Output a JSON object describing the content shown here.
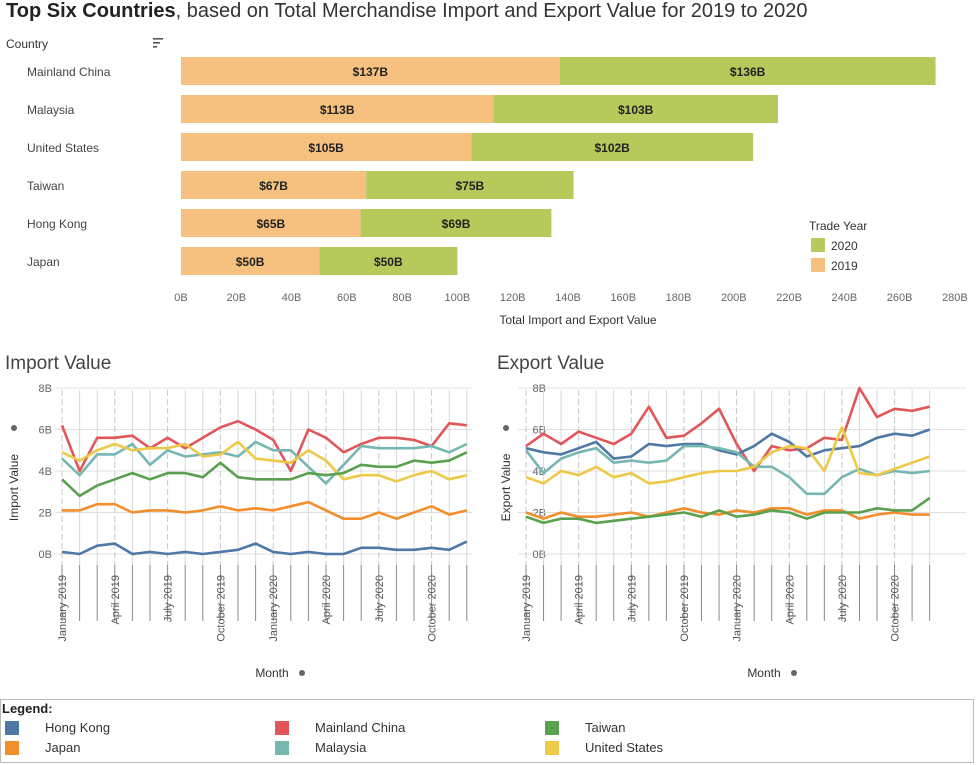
{
  "title": {
    "bold": "Top Six Countries",
    "rest": ", based on Total Merchandise Import and Export Value for 2019 to 2020"
  },
  "bar_chart": {
    "row_header": "Country",
    "xlabel": "Total Import and Export Value",
    "legend_title": "Trade Year"
  },
  "colors": {
    "y2019": "#f6c17f",
    "y2020": "#b6c95b",
    "Hong Kong": "#4e79a7",
    "Japan": "#f28e2b",
    "Mainland China": "#e15759",
    "Malaysia": "#76b7b2",
    "Taiwan": "#59a14f",
    "United States": "#edc948"
  },
  "import_panel": {
    "title": "Import Value",
    "ylabel": "Import Value",
    "xlabel": "Month"
  },
  "export_panel": {
    "title": "Export Value",
    "ylabel": "Export Value",
    "xlabel": "Month"
  },
  "legend": {
    "title": "Legend:",
    "items": [
      "Hong Kong",
      "Japan",
      "Mainland China",
      "Malaysia",
      "Taiwan",
      "United States"
    ]
  },
  "chart_data": [
    {
      "type": "bar",
      "stacked": true,
      "orientation": "horizontal",
      "categories": [
        "Mainland China",
        "Malaysia",
        "United States",
        "Taiwan",
        "Hong Kong",
        "Japan"
      ],
      "series": [
        {
          "name": "2019",
          "values": [
            137,
            113,
            105,
            67,
            65,
            50
          ],
          "labels": [
            "$137B",
            "$113B",
            "$105B",
            "$67B",
            "$65B",
            "$50B"
          ]
        },
        {
          "name": "2020",
          "values": [
            136,
            103,
            102,
            75,
            69,
            50
          ],
          "labels": [
            "$136B",
            "$103B",
            "$102B",
            "$75B",
            "$69B",
            "$50B"
          ]
        }
      ],
      "xlim": [
        0,
        280
      ],
      "xticks": [
        "0B",
        "20B",
        "40B",
        "60B",
        "80B",
        "100B",
        "120B",
        "140B",
        "160B",
        "180B",
        "200B",
        "220B",
        "240B",
        "260B",
        "280B"
      ],
      "xlabel": "Total Import and Export Value",
      "ylabel": "Country",
      "legend_title": "Trade Year",
      "legend_entries": [
        "2020",
        "2019"
      ],
      "legend_position": "right"
    },
    {
      "type": "line",
      "title": "Import Value",
      "xlabel": "Month",
      "ylabel": "Import Value",
      "ylim": [
        0,
        8
      ],
      "yticks": [
        "0B",
        "2B",
        "4B",
        "6B",
        "8B"
      ],
      "xtick_labels": [
        "January 2019",
        "April 2019",
        "July 2019",
        "October 2019",
        "January 2020",
        "April 2020",
        "July 2020",
        "October 2020"
      ],
      "x": [
        "2019-01",
        "2019-02",
        "2019-03",
        "2019-04",
        "2019-05",
        "2019-06",
        "2019-07",
        "2019-08",
        "2019-09",
        "2019-10",
        "2019-11",
        "2019-12",
        "2020-01",
        "2020-02",
        "2020-03",
        "2020-04",
        "2020-05",
        "2020-06",
        "2020-07",
        "2020-08",
        "2020-09",
        "2020-10",
        "2020-11",
        "2020-12"
      ],
      "series": [
        {
          "name": "Mainland China",
          "values": [
            6.2,
            4.0,
            5.6,
            5.6,
            5.7,
            5.1,
            5.6,
            5.1,
            5.6,
            6.1,
            6.4,
            6.0,
            5.5,
            4.0,
            6.0,
            5.6,
            4.9,
            5.3,
            5.6,
            5.6,
            5.5,
            5.2,
            6.3,
            6.2
          ]
        },
        {
          "name": "Malaysia",
          "values": [
            4.6,
            3.8,
            4.8,
            4.8,
            5.3,
            4.3,
            5.0,
            4.7,
            4.8,
            4.9,
            4.7,
            5.4,
            5.0,
            5.0,
            4.2,
            3.4,
            4.3,
            5.2,
            5.1,
            5.1,
            5.1,
            5.2,
            4.9,
            5.3
          ]
        },
        {
          "name": "United States",
          "values": [
            4.9,
            4.5,
            5.0,
            5.3,
            5.0,
            5.1,
            5.1,
            5.3,
            4.7,
            4.8,
            5.4,
            4.6,
            4.5,
            4.4,
            5.0,
            4.5,
            3.6,
            3.8,
            3.8,
            3.5,
            3.8,
            4.0,
            3.6,
            3.8
          ]
        },
        {
          "name": "Taiwan",
          "values": [
            3.6,
            2.8,
            3.3,
            3.6,
            3.9,
            3.6,
            3.9,
            3.9,
            3.7,
            4.4,
            3.7,
            3.6,
            3.6,
            3.6,
            3.9,
            3.8,
            3.9,
            4.3,
            4.2,
            4.2,
            4.5,
            4.4,
            4.5,
            4.9
          ]
        },
        {
          "name": "Japan",
          "values": [
            2.1,
            2.1,
            2.4,
            2.4,
            2.0,
            2.1,
            2.1,
            2.0,
            2.1,
            2.3,
            2.1,
            2.2,
            2.1,
            2.3,
            2.5,
            2.1,
            1.7,
            1.7,
            2.0,
            1.7,
            2.0,
            2.3,
            1.9,
            2.1
          ]
        },
        {
          "name": "Hong Kong",
          "values": [
            0.1,
            0.0,
            0.4,
            0.5,
            0.0,
            0.1,
            0.0,
            0.1,
            0.0,
            0.1,
            0.2,
            0.5,
            0.1,
            0.0,
            0.1,
            0.0,
            0.0,
            0.3,
            0.3,
            0.2,
            0.2,
            0.3,
            0.2,
            0.6
          ]
        }
      ]
    },
    {
      "type": "line",
      "title": "Export Value",
      "xlabel": "Month",
      "ylabel": "Export Value",
      "ylim": [
        0,
        8
      ],
      "yticks": [
        "0B",
        "2B",
        "4B",
        "6B",
        "8B"
      ],
      "xtick_labels": [
        "January 2019",
        "April 2019",
        "July 2019",
        "October 2019",
        "January 2020",
        "April 2020",
        "July 2020",
        "October 2020"
      ],
      "x": [
        "2019-01",
        "2019-02",
        "2019-03",
        "2019-04",
        "2019-05",
        "2019-06",
        "2019-07",
        "2019-08",
        "2019-09",
        "2019-10",
        "2019-11",
        "2019-12",
        "2020-01",
        "2020-02",
        "2020-03",
        "2020-04",
        "2020-05",
        "2020-06",
        "2020-07",
        "2020-08",
        "2020-09",
        "2020-10",
        "2020-11",
        "2020-12"
      ],
      "series": [
        {
          "name": "Mainland China",
          "values": [
            5.2,
            5.8,
            5.3,
            5.9,
            5.6,
            5.3,
            5.8,
            7.1,
            5.6,
            5.7,
            6.3,
            7.0,
            5.3,
            4.0,
            5.2,
            5.0,
            5.1,
            5.6,
            5.5,
            8.0,
            6.6,
            7.0,
            6.9,
            7.1
          ]
        },
        {
          "name": "Hong Kong",
          "values": [
            5.1,
            4.9,
            4.8,
            5.1,
            5.4,
            4.6,
            4.7,
            5.3,
            5.2,
            5.3,
            5.3,
            5.0,
            4.8,
            5.2,
            5.8,
            5.4,
            4.7,
            5.0,
            5.1,
            5.2,
            5.6,
            5.8,
            5.7,
            6.0
          ]
        },
        {
          "name": "Malaysia",
          "values": [
            5.0,
            3.9,
            4.6,
            4.9,
            5.1,
            4.4,
            4.5,
            4.4,
            4.5,
            5.2,
            5.2,
            5.1,
            4.9,
            4.2,
            4.2,
            3.7,
            2.9,
            2.9,
            3.7,
            4.1,
            3.8,
            4.0,
            3.9,
            4.0
          ]
        },
        {
          "name": "United States",
          "values": [
            3.7,
            3.4,
            4.0,
            3.8,
            4.2,
            3.7,
            3.9,
            3.4,
            3.5,
            3.7,
            3.9,
            4.0,
            4.0,
            4.2,
            4.9,
            5.2,
            5.1,
            4.0,
            6.1,
            3.9,
            3.8,
            4.1,
            4.4,
            4.7
          ]
        },
        {
          "name": "Japan",
          "values": [
            2.0,
            1.7,
            2.0,
            1.8,
            1.8,
            1.9,
            2.0,
            1.8,
            2.0,
            2.2,
            2.0,
            1.9,
            2.1,
            2.0,
            2.2,
            2.2,
            1.9,
            2.1,
            2.1,
            1.7,
            1.9,
            2.0,
            1.9,
            1.9
          ]
        },
        {
          "name": "Taiwan",
          "values": [
            1.8,
            1.5,
            1.7,
            1.7,
            1.5,
            1.6,
            1.7,
            1.8,
            1.9,
            2.0,
            1.8,
            2.1,
            1.8,
            1.9,
            2.1,
            2.0,
            1.7,
            2.0,
            2.0,
            2.0,
            2.2,
            2.1,
            2.1,
            2.7
          ]
        }
      ]
    }
  ]
}
